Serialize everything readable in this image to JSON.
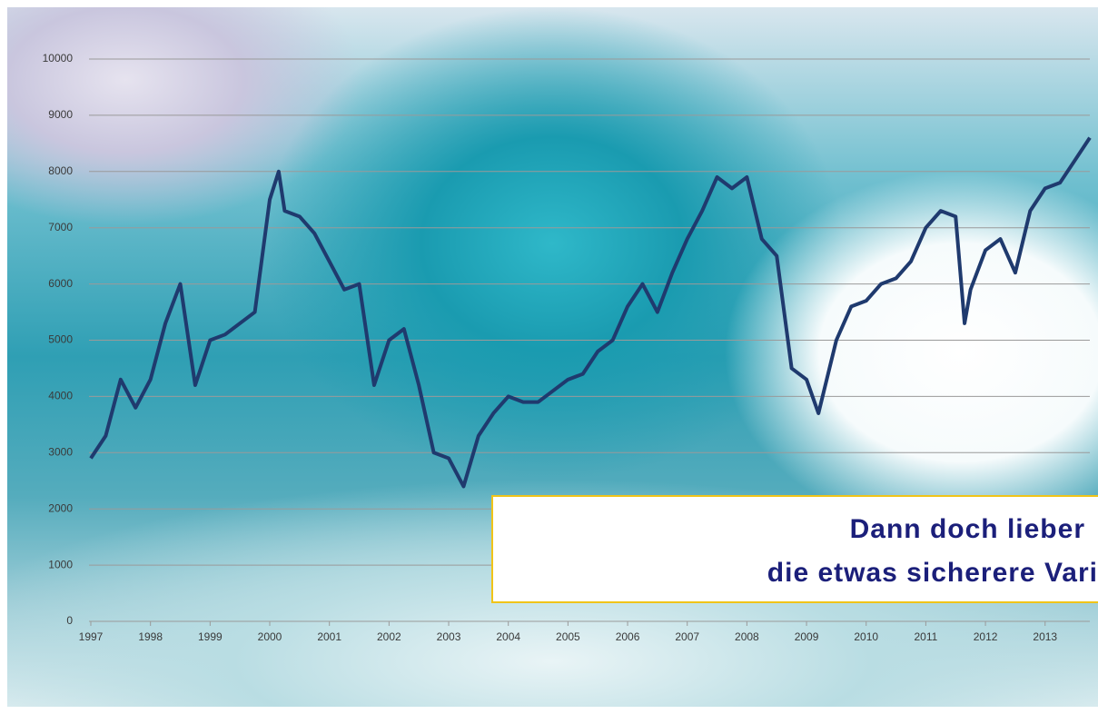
{
  "chart_data": {
    "type": "line",
    "x": [
      1997.0,
      1997.25,
      1997.5,
      1997.75,
      1998.0,
      1998.25,
      1998.5,
      1998.75,
      1999.0,
      1999.25,
      1999.5,
      1999.75,
      2000.0,
      2000.15,
      2000.25,
      2000.5,
      2000.75,
      2001.0,
      2001.25,
      2001.5,
      2001.75,
      2002.0,
      2002.25,
      2002.5,
      2002.75,
      2003.0,
      2003.25,
      2003.5,
      2003.75,
      2004.0,
      2004.25,
      2004.5,
      2004.75,
      2005.0,
      2005.25,
      2005.5,
      2005.75,
      2006.0,
      2006.25,
      2006.5,
      2006.75,
      2007.0,
      2007.25,
      2007.5,
      2007.75,
      2008.0,
      2008.25,
      2008.5,
      2008.75,
      2009.0,
      2009.2,
      2009.5,
      2009.75,
      2010.0,
      2010.25,
      2010.5,
      2010.75,
      2011.0,
      2011.25,
      2011.5,
      2011.65,
      2011.75,
      2012.0,
      2012.25,
      2012.5,
      2012.75,
      2013.0,
      2013.25,
      2013.5,
      2013.75
    ],
    "series": [
      {
        "color": "#1f3a6e",
        "values": [
          2900,
          3300,
          4300,
          3800,
          4300,
          5300,
          6000,
          4200,
          5000,
          5100,
          5300,
          5500,
          7500,
          8000,
          7300,
          7200,
          6900,
          6400,
          5900,
          6000,
          4200,
          5000,
          5200,
          4200,
          3000,
          2900,
          2400,
          3300,
          3700,
          4000,
          3900,
          3900,
          4100,
          4300,
          4400,
          4800,
          5000,
          5600,
          6000,
          5500,
          6200,
          6800,
          7300,
          7900,
          7700,
          7900,
          6800,
          6500,
          4500,
          4300,
          3700,
          5000,
          5600,
          5700,
          6000,
          6100,
          6400,
          7000,
          7300,
          7200,
          5300,
          5900,
          6600,
          6800,
          6200,
          7300,
          7700,
          7800,
          8200,
          8600
        ]
      }
    ],
    "xlim": [
      1997,
      2013.75
    ],
    "xticks": [
      1997,
      1998,
      1999,
      2000,
      2001,
      2002,
      2003,
      2004,
      2005,
      2006,
      2007,
      2008,
      2009,
      2010,
      2011,
      2012,
      2013
    ],
    "ylim": [
      0,
      10000
    ],
    "yticks": [
      0,
      1000,
      2000,
      3000,
      4000,
      5000,
      6000,
      7000,
      8000,
      9000,
      10000
    ],
    "grid": true,
    "annotation": [
      "Dann doch lieber",
      "die etwas sicherere Vari"
    ]
  }
}
